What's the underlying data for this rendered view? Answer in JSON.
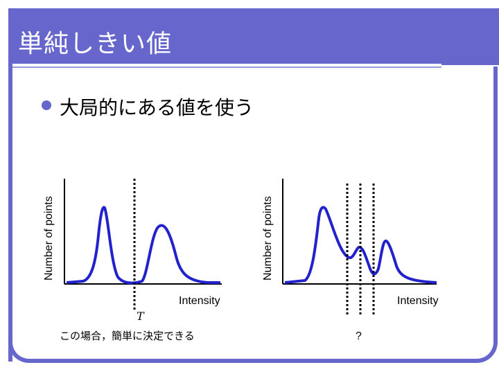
{
  "slide": {
    "title": "単純しきい値",
    "bullet": "大局的にある値を使う"
  },
  "left_plot": {
    "ylabel": "Number of points",
    "xlabel": "Intensity",
    "threshold_label": "T",
    "caption": "この場合，簡単に決定できる"
  },
  "right_plot": {
    "ylabel": "Number of points",
    "xlabel": "Intensity",
    "caption": "?"
  },
  "colors": {
    "accent": "#6666cc",
    "curve": "#2222cc"
  }
}
